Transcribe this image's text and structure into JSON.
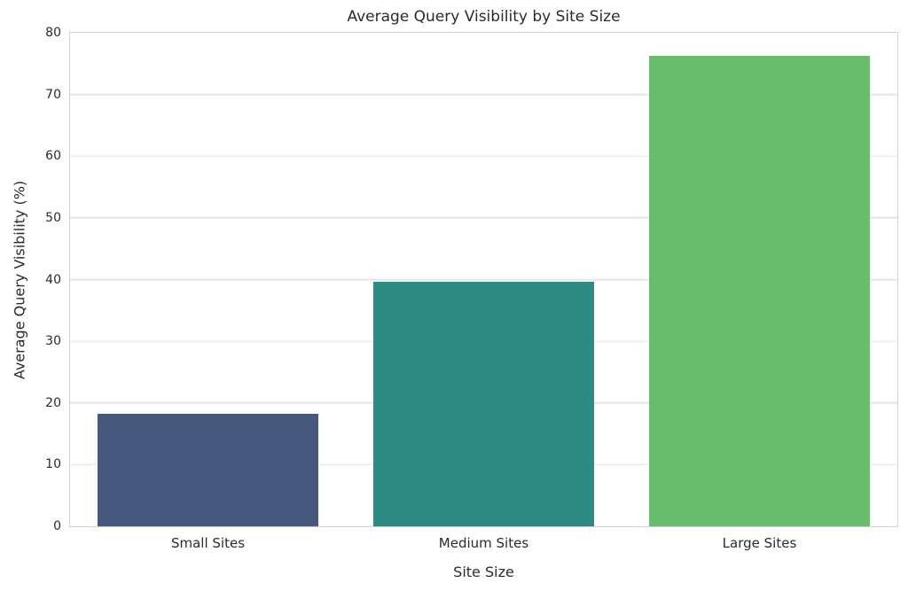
{
  "chart_data": {
    "type": "bar",
    "title": "Average Query Visibility by Site Size",
    "xlabel": "Site Size",
    "ylabel": "Average Query Visibility (%)",
    "categories": [
      "Small Sites",
      "Medium Sites",
      "Large Sites"
    ],
    "values": [
      18.2,
      39.6,
      76.2
    ],
    "ylim": [
      0,
      80
    ],
    "yticks": [
      0,
      10,
      20,
      30,
      40,
      50,
      60,
      70,
      80
    ],
    "bar_colors": [
      "#46597D",
      "#2E8B84",
      "#69BE6D"
    ],
    "grid": "horizontal gridlines on",
    "legend": "none",
    "colors": {
      "background": "#ffffff",
      "grid": "#e5e5e5",
      "spine": "#d2d2d2",
      "text": "#2b2b2b"
    }
  }
}
